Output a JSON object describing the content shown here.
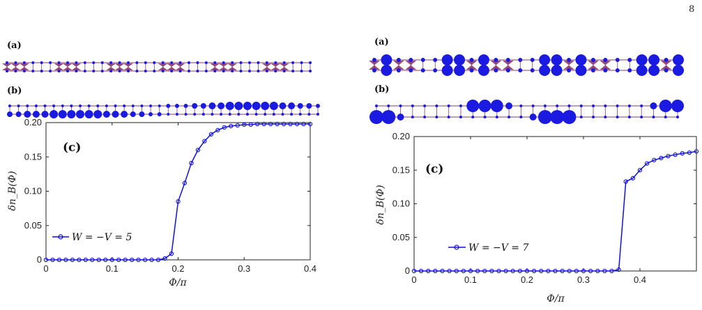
{
  "page_number": "8",
  "colors": {
    "series": "#1010d8",
    "lattice": "#8b3a6e",
    "site": "#1a1ae0",
    "axis": "#222222"
  },
  "left": {
    "tag_a": "(a)",
    "tag_b": "(b)",
    "tag_c": "(c)",
    "legend_label": "W = −V = 5",
    "xlabel": "Φ/π",
    "ylabel": "δn_B(Φ)",
    "xticks": [
      "0",
      "0.1",
      "0.2",
      "0.3",
      "0.4"
    ],
    "yticks": [
      "0",
      "0.05",
      "0.10",
      "0.15",
      "0.20"
    ]
  },
  "right": {
    "tag_a": "(a)",
    "tag_b": "(b)",
    "tag_c": "(c)",
    "legend_label": "W = −V = 7",
    "xlabel": "Φ/π",
    "ylabel": "δn_B(Φ)",
    "xticks": [
      "0",
      "0.1",
      "0.2",
      "0.3",
      "0.4"
    ],
    "yticks": [
      "0",
      "0.05",
      "0.10",
      "0.15",
      "0.20"
    ]
  },
  "chart_data": [
    {
      "type": "line",
      "title": "",
      "xlabel": "Φ/π",
      "ylabel": "δn_B(Φ)",
      "xlim": [
        0,
        0.4
      ],
      "ylim": [
        0,
        0.2
      ],
      "grid": false,
      "legend": "lower-left",
      "series": [
        {
          "name": "W = −V = 5",
          "x": [
            0,
            0.01,
            0.02,
            0.03,
            0.04,
            0.05,
            0.06,
            0.07,
            0.08,
            0.09,
            0.1,
            0.11,
            0.12,
            0.13,
            0.14,
            0.15,
            0.16,
            0.17,
            0.18,
            0.19,
            0.2,
            0.21,
            0.22,
            0.23,
            0.24,
            0.25,
            0.26,
            0.27,
            0.28,
            0.29,
            0.3,
            0.31,
            0.32,
            0.33,
            0.34,
            0.35,
            0.36,
            0.37,
            0.38,
            0.39,
            0.4
          ],
          "y": [
            0,
            0,
            0,
            0,
            0,
            0,
            0,
            0,
            0,
            0,
            0,
            0,
            0,
            0,
            0,
            0,
            0,
            0,
            0.002,
            0.009,
            0.085,
            0.112,
            0.141,
            0.16,
            0.173,
            0.183,
            0.189,
            0.193,
            0.195,
            0.196,
            0.197,
            0.197,
            0.198,
            0.198,
            0.198,
            0.198,
            0.198,
            0.198,
            0.198,
            0.198,
            0.198
          ]
        }
      ]
    },
    {
      "type": "line",
      "title": "",
      "xlabel": "Φ/π",
      "ylabel": "δn_B(Φ)",
      "xlim": [
        0,
        0.5
      ],
      "ylim": [
        0,
        0.2
      ],
      "grid": false,
      "legend": "lower-left",
      "series": [
        {
          "name": "W = −V = 7",
          "x": [
            0,
            0.0125,
            0.025,
            0.0375,
            0.05,
            0.0625,
            0.075,
            0.0875,
            0.1,
            0.1125,
            0.125,
            0.1375,
            0.15,
            0.1625,
            0.175,
            0.1875,
            0.2,
            0.2125,
            0.225,
            0.2375,
            0.25,
            0.2625,
            0.275,
            0.2875,
            0.3,
            0.3125,
            0.325,
            0.3375,
            0.35,
            0.3625,
            0.375,
            0.3875,
            0.4,
            0.4125,
            0.425,
            0.4375,
            0.45,
            0.4625,
            0.475,
            0.4875,
            0.5
          ],
          "y": [
            0,
            0,
            0,
            0,
            0,
            0,
            0,
            0,
            0,
            0,
            0,
            0,
            0,
            0,
            0,
            0,
            0,
            0,
            0,
            0,
            0,
            0,
            0,
            0,
            0,
            0,
            0,
            0,
            0,
            0.002,
            0.133,
            0.138,
            0.15,
            0.16,
            0.165,
            0.168,
            0.171,
            0.173,
            0.175,
            0.176,
            0.178
          ]
        }
      ]
    }
  ]
}
